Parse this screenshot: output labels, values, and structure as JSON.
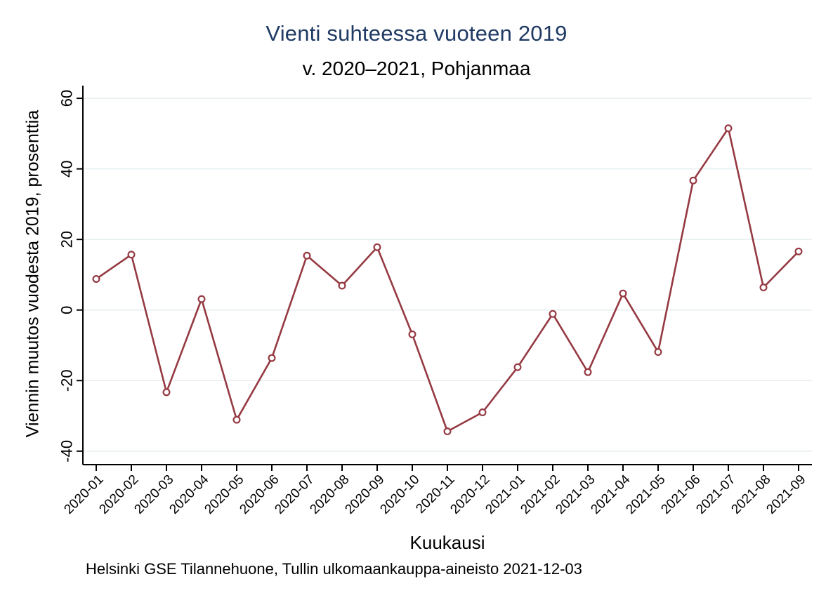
{
  "chart_data": {
    "type": "line",
    "title": "Vienti suhteessa vuoteen 2019",
    "subtitle": "v. 2020–2021, Pohjanmaa",
    "ylabel": "Viennin muutos vuodesta 2019, prosenttia",
    "xlabel": "Kuukausi",
    "note": "Helsinki GSE Tilannehuone, Tullin ulkomaankauppa-aineisto 2021-12-03",
    "categories": [
      "2020-01",
      "2020-02",
      "2020-03",
      "2020-04",
      "2020-05",
      "2020-06",
      "2020-07",
      "2020-08",
      "2020-09",
      "2020-10",
      "2020-11",
      "2020-12",
      "2021-01",
      "2021-02",
      "2021-03",
      "2021-04",
      "2021-05",
      "2021-06",
      "2021-07",
      "2021-08",
      "2021-09"
    ],
    "series": [
      {
        "name": "Viennin muutos",
        "values": [
          8.8,
          15.7,
          -23.3,
          3.1,
          -31.1,
          -13.6,
          15.4,
          6.9,
          17.8,
          -6.9,
          -34.4,
          -29.0,
          -16.2,
          -1.1,
          -17.6,
          4.7,
          -11.9,
          36.7,
          51.5,
          6.4,
          16.6
        ]
      }
    ],
    "yticks": [
      60,
      40,
      20,
      0,
      -20,
      -40
    ],
    "ylim": [
      -43.5,
      63.5
    ],
    "grid": true,
    "legend": "none",
    "marker": "open-circle",
    "colors": {
      "line": "#953a42",
      "marker_fill": "#ffffff",
      "grid": "#e8eff1",
      "axis": "#000000",
      "title": "#1f3a63",
      "text": "#000000",
      "background": "#ffffff"
    }
  }
}
